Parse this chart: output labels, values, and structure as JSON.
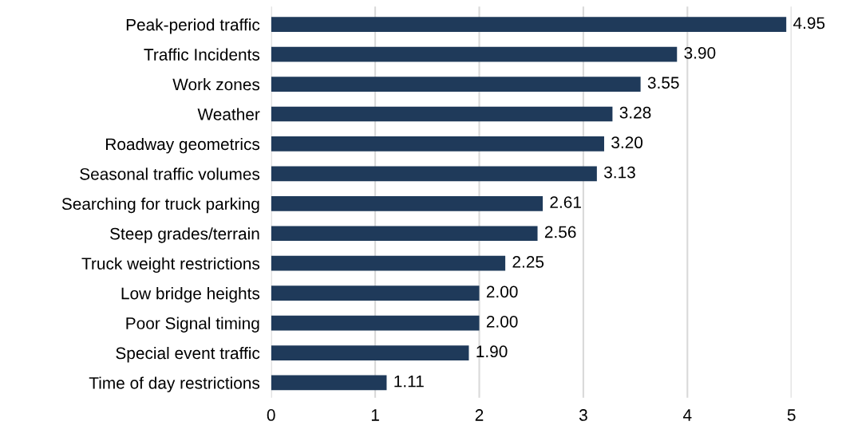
{
  "chart_data": {
    "type": "bar",
    "orientation": "horizontal",
    "categories": [
      "Peak-period traffic",
      "Traffic Incidents",
      "Work zones",
      "Weather",
      "Roadway geometrics",
      "Seasonal traffic volumes",
      "Searching for truck parking",
      "Steep grades/terrain",
      "Truck weight restrictions",
      "Low bridge heights",
      "Poor Signal timing",
      "Special event traffic",
      "Time of day restrictions"
    ],
    "values": [
      4.95,
      3.9,
      3.55,
      3.28,
      3.2,
      3.13,
      2.61,
      2.56,
      2.25,
      2.0,
      2.0,
      1.9,
      1.11
    ],
    "value_labels": [
      "4.95",
      "3.90",
      "3.55",
      "3.28",
      "3.20",
      "3.13",
      "2.61",
      "2.56",
      "2.25",
      "2.00",
      "2.00",
      "1.90",
      "1.11"
    ],
    "color": "#1f3a5a",
    "xlim": [
      0,
      5
    ],
    "xticks": [
      0,
      1,
      2,
      3,
      4,
      5
    ],
    "grid": "x"
  }
}
